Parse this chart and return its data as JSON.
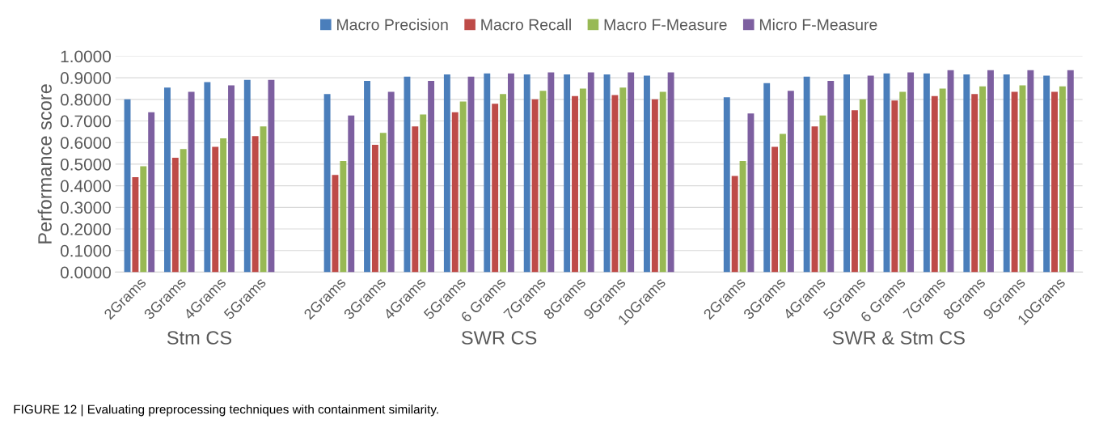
{
  "chart_data": {
    "type": "bar",
    "ylabel": "Performance score",
    "categories": [
      "2Grams",
      "3Grams",
      "4Grams",
      "5Grams",
      null,
      "2Grams",
      "3Grams",
      "4Grams",
      "5Grams",
      "6 Grams",
      "7Grams",
      "8Grams",
      "9Grams",
      "10Grams",
      null,
      "2Grams",
      "3Grams",
      "4Grams",
      "5Grams",
      "6 Grams",
      "7Grams",
      "8Grams",
      "9Grams",
      "10Grams"
    ],
    "series": [
      {
        "name": "Macro Precision",
        "color": "#4a7ebb",
        "values": [
          0.8,
          0.855,
          0.88,
          0.89,
          null,
          0.825,
          0.885,
          0.905,
          0.915,
          0.92,
          0.915,
          0.915,
          0.915,
          0.91,
          null,
          0.81,
          0.875,
          0.905,
          0.915,
          0.92,
          0.92,
          0.915,
          0.915,
          0.91
        ]
      },
      {
        "name": "Macro Recall",
        "color": "#be4b48",
        "values": [
          0.44,
          0.53,
          0.58,
          0.63,
          null,
          0.45,
          0.59,
          0.675,
          0.74,
          0.78,
          0.8,
          0.815,
          0.82,
          0.8,
          null,
          0.445,
          0.58,
          0.675,
          0.75,
          0.795,
          0.815,
          0.825,
          0.835,
          0.835
        ]
      },
      {
        "name": "Macro F-Measure",
        "color": "#98b954",
        "values": [
          0.49,
          0.57,
          0.62,
          0.675,
          null,
          0.515,
          0.645,
          0.73,
          0.79,
          0.825,
          0.84,
          0.85,
          0.855,
          0.835,
          null,
          0.515,
          0.64,
          0.725,
          0.8,
          0.835,
          0.85,
          0.86,
          0.865,
          0.86
        ]
      },
      {
        "name": "Micro F-Measure",
        "color": "#7d5fa0",
        "values": [
          0.74,
          0.835,
          0.865,
          0.89,
          null,
          0.725,
          0.835,
          0.885,
          0.905,
          0.92,
          0.925,
          0.925,
          0.925,
          0.925,
          null,
          0.735,
          0.84,
          0.885,
          0.91,
          0.925,
          0.935,
          0.935,
          0.935,
          0.935
        ]
      }
    ],
    "ylim": [
      0,
      1.0
    ],
    "yticks": [
      {
        "value": 0,
        "label": "0.0000"
      },
      {
        "value": 0.1,
        "label": "0.1000"
      },
      {
        "value": 0.2,
        "label": "0.2000"
      },
      {
        "value": 0.3,
        "label": "0.3000"
      },
      {
        "value": 0.4,
        "label": "0.4000"
      },
      {
        "value": 0.5,
        "label": "0.5000"
      },
      {
        "value": 0.6,
        "label": "0.6000"
      },
      {
        "value": 0.7,
        "label": "0.7000"
      },
      {
        "value": 0.8,
        "label": "0.8000"
      },
      {
        "value": 0.9,
        "label": "0.9000"
      },
      {
        "value": 1.0,
        "label": "1.0000"
      }
    ],
    "grid": "y",
    "legend": "top",
    "annotations": [
      "Stm CS",
      "SWR CS",
      "SWR & Stm CS",
      "FIGURE 12 | Evaluating preprocessing techniques with containment similarity."
    ]
  }
}
